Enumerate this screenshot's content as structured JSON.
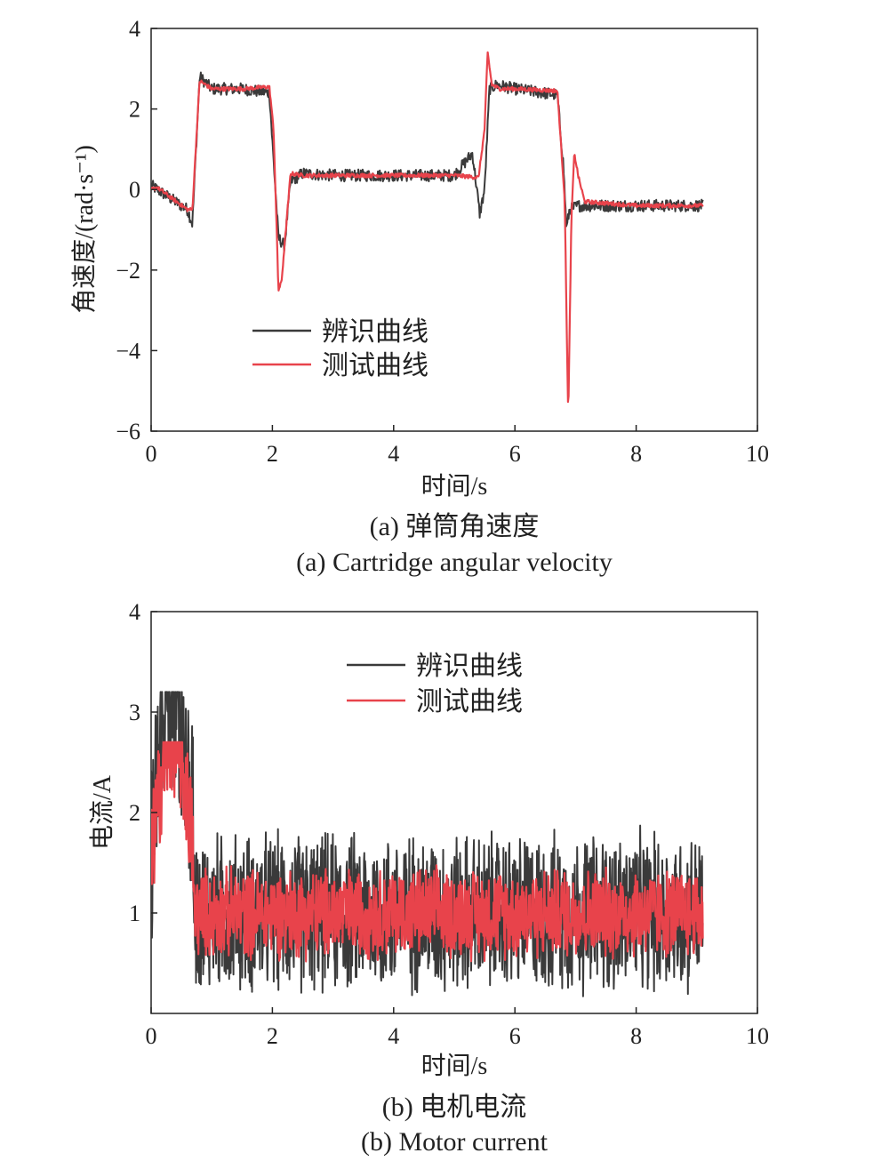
{
  "colors": {
    "identified": "#3a3a3a",
    "measured": "#e8434b",
    "axis": "#222222"
  },
  "chart_data": [
    {
      "type": "line",
      "xlabel": "时间/s",
      "ylabel": "角速度/(rad·s⁻¹)",
      "xlim": [
        0,
        10
      ],
      "ylim": [
        -6,
        4
      ],
      "xticks": [
        "0",
        "2",
        "4",
        "6",
        "8",
        "10"
      ],
      "yticks": [
        "4",
        "2",
        "0",
        "−2",
        "−4",
        "−6"
      ],
      "grid": false,
      "legend_position": "lower-left",
      "caption_cn": "(a) 弹筒角速度",
      "caption_en": "(a) Cartridge angular velocity",
      "series": [
        {
          "name": "辨识曲线",
          "color": "#3a3a3a",
          "noise": 0.15,
          "x": [
            0,
            0.1,
            0.6,
            0.68,
            0.8,
            1.0,
            1.5,
            1.95,
            2.05,
            2.1,
            2.2,
            2.3,
            2.5,
            3.0,
            4.0,
            5.0,
            5.3,
            5.42,
            5.5,
            5.58,
            5.7,
            6.0,
            6.7,
            6.8,
            6.85,
            6.9,
            7.05,
            7.2,
            8.0,
            9.1
          ],
          "y": [
            0.1,
            0.0,
            -0.5,
            -0.85,
            2.8,
            2.5,
            2.5,
            2.4,
            0.0,
            -1.2,
            -1.4,
            0.2,
            0.4,
            0.35,
            0.35,
            0.35,
            0.9,
            -0.6,
            0.0,
            2.5,
            2.6,
            2.5,
            2.35,
            0.6,
            -1.0,
            -0.5,
            -0.4,
            -0.4,
            -0.4,
            -0.4
          ]
        },
        {
          "name": "测试曲线",
          "color": "#e8434b",
          "noise": 0.05,
          "x": [
            0,
            0.1,
            0.6,
            0.68,
            0.8,
            1.0,
            1.5,
            1.95,
            2.02,
            2.1,
            2.15,
            2.3,
            2.5,
            4.0,
            5.0,
            5.4,
            5.5,
            5.55,
            5.62,
            5.75,
            6.0,
            6.7,
            6.82,
            6.88,
            6.93,
            6.98,
            7.05,
            7.15,
            8.0,
            9.1
          ],
          "y": [
            0.0,
            0.05,
            -0.5,
            -0.5,
            2.7,
            2.5,
            2.5,
            2.55,
            1.5,
            -2.5,
            -2.3,
            0.4,
            0.35,
            0.35,
            0.35,
            0.3,
            1.5,
            3.4,
            2.6,
            2.5,
            2.5,
            2.45,
            -0.2,
            -5.7,
            -0.8,
            0.9,
            0.3,
            -0.3,
            -0.4,
            -0.4
          ]
        }
      ]
    },
    {
      "type": "line",
      "xlabel": "时间/s",
      "ylabel": "电流/A",
      "xlim": [
        0,
        10
      ],
      "ylim": [
        0,
        4
      ],
      "xticks": [
        "0",
        "2",
        "4",
        "6",
        "8",
        "10"
      ],
      "yticks": [
        "4",
        "3",
        "2",
        "1"
      ],
      "grid": false,
      "legend_position": "top-center",
      "caption_cn": "(b) 电机电流",
      "caption_en": "(b) Motor current",
      "series": [
        {
          "name": "辨识曲线",
          "color": "#3a3a3a",
          "mean": 1.0,
          "amplitude": 0.75,
          "startup_peak": 3.2,
          "startup_end": 0.7,
          "x_end": 9.1
        },
        {
          "name": "测试曲线",
          "color": "#e8434b",
          "mean": 1.0,
          "amplitude": 0.42,
          "startup_peak": 2.7,
          "startup_end": 0.7,
          "x_end": 9.1
        }
      ]
    }
  ]
}
